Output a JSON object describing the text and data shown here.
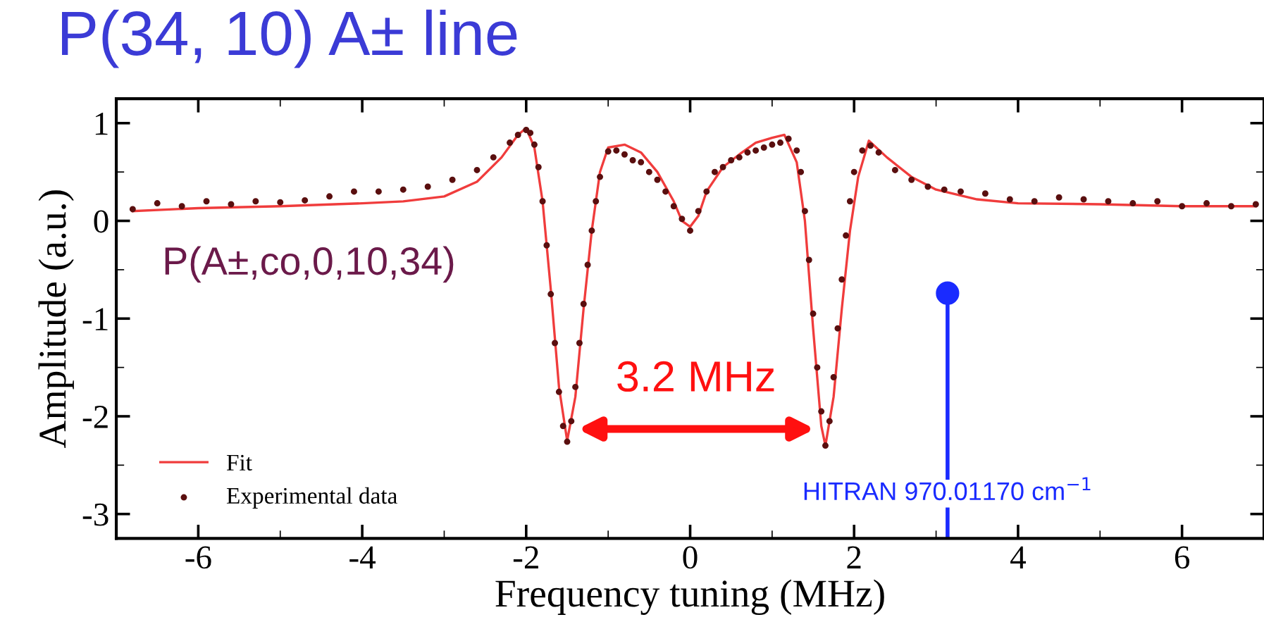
{
  "chart_data": {
    "type": "scatter",
    "title": "P(34, 10) A± line",
    "xlabel": "Frequency tuning (MHz)",
    "ylabel": "Amplitude (a.u.)",
    "xlim": [
      -7,
      7
    ],
    "ylim": [
      -3.25,
      1.25
    ],
    "xticks": [
      -6,
      -4,
      -2,
      0,
      2,
      4,
      6
    ],
    "yticks": [
      -3,
      -2,
      -1,
      0,
      1
    ],
    "grid": false,
    "legend": "bottom left",
    "series": [
      {
        "name": "Fit",
        "type": "line",
        "color": "#f03c3c",
        "x": [
          -6.8,
          -6,
          -5,
          -4,
          -3.5,
          -3,
          -2.6,
          -2.3,
          -2.1,
          -2.0,
          -1.9,
          -1.8,
          -1.7,
          -1.6,
          -1.5,
          -1.4,
          -1.3,
          -1.2,
          -1.1,
          -1.0,
          -0.8,
          -0.6,
          -0.4,
          -0.2,
          -0.1,
          0,
          0.1,
          0.2,
          0.4,
          0.6,
          0.8,
          1.0,
          1.15,
          1.3,
          1.4,
          1.5,
          1.6,
          1.65,
          1.75,
          1.85,
          1.95,
          2.05,
          2.18,
          2.4,
          2.7,
          3.0,
          3.5,
          4,
          5,
          6,
          6.9
        ],
        "values": [
          0.1,
          0.13,
          0.15,
          0.18,
          0.2,
          0.25,
          0.4,
          0.65,
          0.88,
          0.95,
          0.75,
          0.2,
          -0.7,
          -1.7,
          -2.25,
          -1.8,
          -0.9,
          -0.1,
          0.5,
          0.75,
          0.78,
          0.7,
          0.5,
          0.2,
          0.0,
          -0.06,
          0.05,
          0.3,
          0.55,
          0.68,
          0.8,
          0.85,
          0.88,
          0.6,
          0.0,
          -1.1,
          -2.1,
          -2.3,
          -1.8,
          -0.9,
          -0.1,
          0.45,
          0.82,
          0.65,
          0.45,
          0.32,
          0.22,
          0.18,
          0.17,
          0.15,
          0.15
        ]
      },
      {
        "name": "Experimental data",
        "marker": "circle",
        "color": "#5a0f0f",
        "x": [
          -6.8,
          -6.5,
          -6.2,
          -5.9,
          -5.6,
          -5.3,
          -5.0,
          -4.7,
          -4.4,
          -4.1,
          -3.8,
          -3.5,
          -3.2,
          -2.9,
          -2.6,
          -2.4,
          -2.2,
          -2.1,
          -2.0,
          -1.95,
          -1.9,
          -1.85,
          -1.8,
          -1.75,
          -1.7,
          -1.65,
          -1.6,
          -1.55,
          -1.5,
          -1.45,
          -1.4,
          -1.35,
          -1.3,
          -1.25,
          -1.2,
          -1.15,
          -1.1,
          -1.0,
          -0.9,
          -0.8,
          -0.7,
          -0.6,
          -0.5,
          -0.4,
          -0.3,
          -0.2,
          -0.1,
          0,
          0.1,
          0.2,
          0.3,
          0.4,
          0.5,
          0.6,
          0.7,
          0.8,
          0.9,
          1.0,
          1.1,
          1.2,
          1.3,
          1.35,
          1.4,
          1.45,
          1.5,
          1.55,
          1.6,
          1.65,
          1.7,
          1.75,
          1.8,
          1.85,
          1.9,
          1.95,
          2.0,
          2.1,
          2.2,
          2.3,
          2.5,
          2.7,
          2.9,
          3.1,
          3.3,
          3.6,
          3.9,
          4.2,
          4.5,
          4.8,
          5.1,
          5.4,
          5.7,
          6.0,
          6.3,
          6.6,
          6.9
        ],
        "values": [
          0.12,
          0.18,
          0.15,
          0.2,
          0.17,
          0.2,
          0.19,
          0.21,
          0.25,
          0.3,
          0.3,
          0.32,
          0.35,
          0.42,
          0.52,
          0.65,
          0.8,
          0.88,
          0.93,
          0.9,
          0.78,
          0.55,
          0.2,
          -0.25,
          -0.75,
          -1.25,
          -1.75,
          -2.1,
          -2.26,
          -2.05,
          -1.7,
          -1.25,
          -0.85,
          -0.45,
          -0.1,
          0.2,
          0.45,
          0.71,
          0.72,
          0.68,
          0.62,
          0.6,
          0.5,
          0.42,
          0.3,
          0.15,
          0.02,
          -0.1,
          0.1,
          0.3,
          0.5,
          0.55,
          0.62,
          0.65,
          0.7,
          0.72,
          0.75,
          0.78,
          0.8,
          0.84,
          0.72,
          0.5,
          0.1,
          -0.4,
          -0.95,
          -1.5,
          -1.95,
          -2.3,
          -2.05,
          -1.6,
          -1.1,
          -0.6,
          -0.15,
          0.2,
          0.5,
          0.72,
          0.77,
          0.7,
          0.52,
          0.42,
          0.35,
          0.32,
          0.3,
          0.28,
          0.22,
          0.2,
          0.24,
          0.22,
          0.2,
          0.18,
          0.2,
          0.15,
          0.18,
          0.15,
          0.17
        ]
      },
      {
        "marker": "circle",
        "color": "#1a2bff",
        "x": [
          3.14
        ],
        "values": [
          -0.74
        ]
      }
    ],
    "ref_lines": [
      {
        "axis": "x",
        "value": 3.14,
        "label": "HITRAN 970.01170 cm$^{−1}$",
        "color": "#1a2bff"
      }
    ],
    "annotations": [
      "3.2 MHz",
      "P(A±,co,0,10,34)"
    ]
  }
}
